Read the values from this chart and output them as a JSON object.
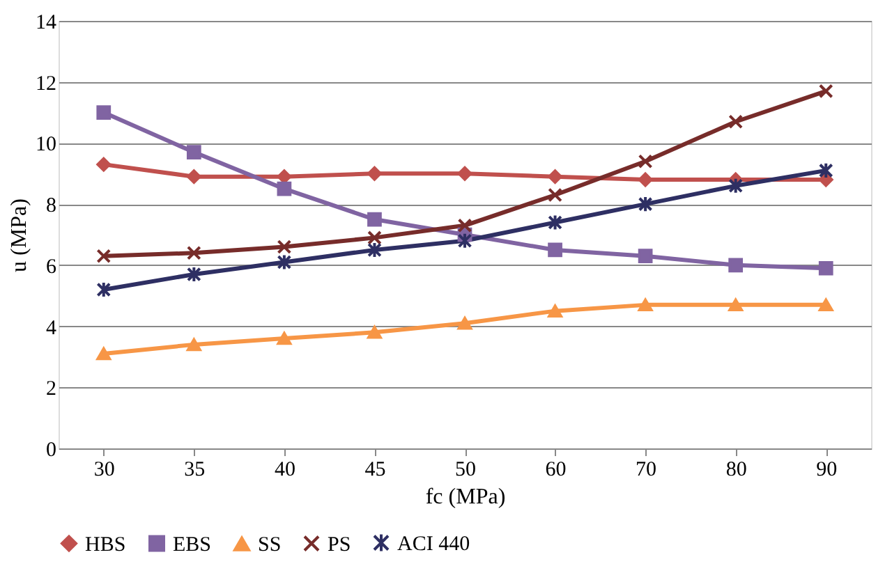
{
  "chart_data": {
    "type": "line",
    "xlabel": "fc (MPa)",
    "ylabel": "u (MPa)",
    "categories": [
      "30",
      "35",
      "40",
      "45",
      "50",
      "60",
      "70",
      "80",
      "90"
    ],
    "ylim": [
      0,
      14
    ],
    "yticks": [
      0,
      2,
      4,
      6,
      8,
      10,
      12,
      14
    ],
    "grid": "y",
    "legend": "bottom",
    "series": [
      {
        "name": "HBS",
        "color": "#c0504d",
        "marker": "diamond",
        "values": [
          9.3,
          8.9,
          8.9,
          9.0,
          9.0,
          8.9,
          8.8,
          8.8,
          8.8
        ]
      },
      {
        "name": "EBS",
        "color": "#8064a2",
        "marker": "square",
        "values": [
          11.0,
          9.7,
          8.5,
          7.5,
          7.0,
          6.5,
          6.3,
          6.0,
          5.9
        ]
      },
      {
        "name": "SS",
        "color": "#f79646",
        "marker": "triangle",
        "values": [
          3.1,
          3.4,
          3.6,
          3.8,
          4.1,
          4.5,
          4.7,
          4.7,
          4.7
        ]
      },
      {
        "name": "PS",
        "color": "#772c2a",
        "marker": "cross",
        "values": [
          6.3,
          6.4,
          6.6,
          6.9,
          7.3,
          8.3,
          9.4,
          10.7,
          11.7
        ]
      },
      {
        "name": "ACI 440",
        "color": "#2e2f63",
        "marker": "cross",
        "values": [
          5.2,
          5.7,
          6.1,
          6.5,
          6.8,
          7.4,
          8.0,
          8.6,
          9.1
        ]
      }
    ]
  }
}
